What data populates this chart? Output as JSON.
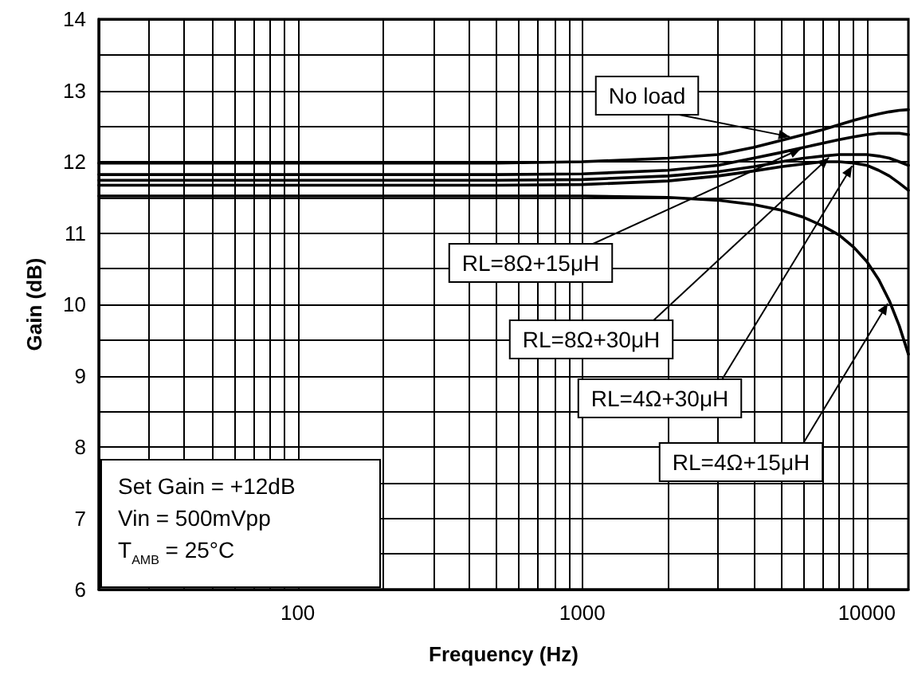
{
  "chart_data": {
    "type": "line",
    "xlabel": "Frequency (Hz)",
    "ylabel": "Gain (dB)",
    "log": "x",
    "grid": true,
    "legend": false,
    "marker": "none",
    "line_style": "solid",
    "x": [
      20,
      50,
      100,
      200,
      500,
      1000,
      2000,
      3000,
      4000,
      5000,
      6000,
      7000,
      8000,
      9000,
      10000,
      11000,
      12000,
      13000,
      14000
    ],
    "series": [
      {
        "name": "No load",
        "color": "#000000",
        "values": [
          11.98,
          11.98,
          11.98,
          11.98,
          11.98,
          12.0,
          12.05,
          12.1,
          12.2,
          12.3,
          12.38,
          12.45,
          12.52,
          12.58,
          12.63,
          12.67,
          12.7,
          12.72,
          12.73
        ]
      },
      {
        "name": "RL=8Ω+15μH",
        "color": "#000000",
        "values": [
          11.82,
          11.82,
          11.82,
          11.82,
          11.82,
          11.83,
          11.88,
          11.95,
          12.05,
          12.13,
          12.2,
          12.26,
          12.31,
          12.35,
          12.38,
          12.4,
          12.4,
          12.4,
          12.38
        ]
      },
      {
        "name": "RL=8Ω+30μH",
        "color": "#000000",
        "values": [
          11.74,
          11.74,
          11.74,
          11.74,
          11.74,
          11.75,
          11.8,
          11.86,
          11.93,
          12.0,
          12.05,
          12.08,
          12.1,
          12.1,
          12.1,
          12.08,
          12.05,
          12.0,
          11.95
        ]
      },
      {
        "name": "RL=4Ω+30μH",
        "color": "#000000",
        "values": [
          11.67,
          11.67,
          11.67,
          11.67,
          11.67,
          11.68,
          11.73,
          11.8,
          11.87,
          11.93,
          11.97,
          12.0,
          12.0,
          11.98,
          11.95,
          11.88,
          11.8,
          11.7,
          11.6
        ]
      },
      {
        "name": "RL=4Ω+15μH",
        "color": "#000000",
        "values": [
          11.52,
          11.52,
          11.52,
          11.52,
          11.52,
          11.52,
          11.5,
          11.46,
          11.4,
          11.32,
          11.22,
          11.1,
          10.97,
          10.8,
          10.6,
          10.35,
          10.05,
          9.7,
          9.3
        ]
      }
    ],
    "xlim": [
      20,
      14000
    ],
    "xticks": [
      {
        "value": 20,
        "label": null
      },
      {
        "value": 30,
        "label": null
      },
      {
        "value": 40,
        "label": null
      },
      {
        "value": 50,
        "label": null
      },
      {
        "value": 60,
        "label": null
      },
      {
        "value": 70,
        "label": null
      },
      {
        "value": 80,
        "label": null
      },
      {
        "value": 90,
        "label": null
      },
      100,
      {
        "value": 200,
        "label": null
      },
      {
        "value": 300,
        "label": null
      },
      {
        "value": 400,
        "label": null
      },
      {
        "value": 500,
        "label": null
      },
      {
        "value": 600,
        "label": null
      },
      {
        "value": 700,
        "label": null
      },
      {
        "value": 800,
        "label": null
      },
      {
        "value": 900,
        "label": null
      },
      1000,
      {
        "value": 2000,
        "label": null
      },
      {
        "value": 3000,
        "label": null
      },
      {
        "value": 4000,
        "label": null
      },
      {
        "value": 5000,
        "label": null
      },
      {
        "value": 6000,
        "label": null
      },
      {
        "value": 7000,
        "label": null
      },
      {
        "value": 8000,
        "label": null
      },
      {
        "value": 9000,
        "label": null
      },
      10000
    ],
    "ylim": [
      6,
      14
    ],
    "yticks": [
      6,
      {
        "value": 6.5,
        "label": null
      },
      7,
      {
        "value": 7.5,
        "label": null
      },
      8,
      {
        "value": 8.5,
        "label": null
      },
      9,
      {
        "value": 9.5,
        "label": null
      },
      10,
      {
        "value": 10.5,
        "label": null
      },
      11,
      {
        "value": 11.5,
        "label": null
      },
      12,
      {
        "value": 12.5,
        "label": null
      },
      13,
      {
        "value": 13.5,
        "label": null
      },
      14
    ],
    "annotations": [
      "Set Gain = +12dB\nVin = 500mVpp\nT$_{AMB}$ = 25°C"
    ]
  }
}
